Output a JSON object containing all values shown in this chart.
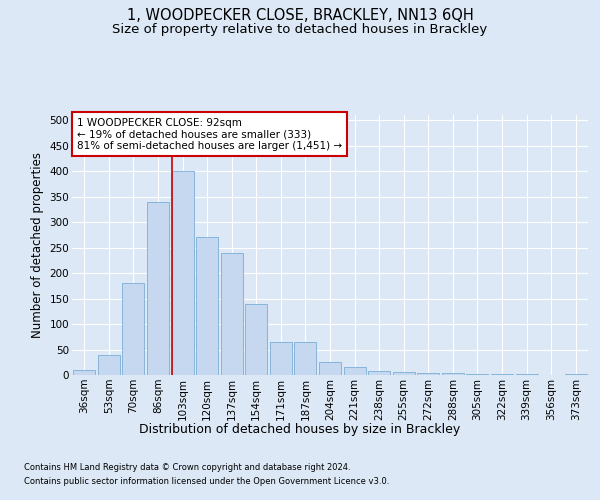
{
  "title": "1, WOODPECKER CLOSE, BRACKLEY, NN13 6QH",
  "subtitle": "Size of property relative to detached houses in Brackley",
  "xlabel": "Distribution of detached houses by size in Brackley",
  "ylabel": "Number of detached properties",
  "categories": [
    "36sqm",
    "53sqm",
    "70sqm",
    "86sqm",
    "103sqm",
    "120sqm",
    "137sqm",
    "154sqm",
    "171sqm",
    "187sqm",
    "204sqm",
    "221sqm",
    "238sqm",
    "255sqm",
    "272sqm",
    "288sqm",
    "305sqm",
    "322sqm",
    "339sqm",
    "356sqm",
    "373sqm"
  ],
  "values": [
    10,
    40,
    180,
    340,
    400,
    270,
    240,
    140,
    65,
    65,
    25,
    15,
    8,
    5,
    4,
    3,
    2,
    1,
    1,
    0,
    2
  ],
  "bar_color": "#c5d8f0",
  "bar_edge_color": "#7aaed6",
  "vline_color": "#cc0000",
  "vline_x": 3.57,
  "annotation_text": "1 WOODPECKER CLOSE: 92sqm\n← 19% of detached houses are smaller (333)\n81% of semi-detached houses are larger (1,451) →",
  "annotation_box_facecolor": "#ffffff",
  "annotation_box_edgecolor": "#cc0000",
  "footnote1": "Contains HM Land Registry data © Crown copyright and database right 2024.",
  "footnote2": "Contains public sector information licensed under the Open Government Licence v3.0.",
  "ylim": [
    0,
    510
  ],
  "yticks": [
    0,
    50,
    100,
    150,
    200,
    250,
    300,
    350,
    400,
    450,
    500
  ],
  "background_color": "#dce8f5",
  "grid_color": "#ffffff",
  "title_fontsize": 10.5,
  "subtitle_fontsize": 9.5,
  "tick_fontsize": 7.5,
  "ylabel_fontsize": 8.5,
  "xlabel_fontsize": 9,
  "annotation_fontsize": 7.5,
  "footnote_fontsize": 6
}
